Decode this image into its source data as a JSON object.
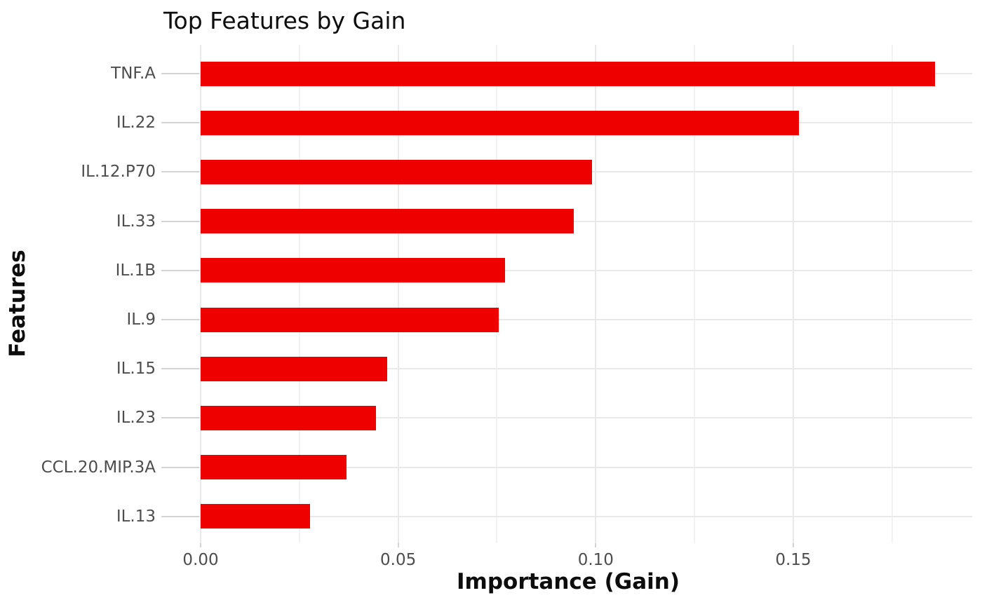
{
  "title": "Top Features by Gain",
  "x_axis": {
    "label": "Importance (Gain)",
    "tick_labels": [
      "0.00",
      "0.05",
      "0.10",
      "0.15"
    ]
  },
  "y_axis": {
    "label": "Features"
  },
  "colors": {
    "bar": "#ee0000",
    "grid_major": "#e9e9e9",
    "grid_minor": "#f2f2f2",
    "tick_mark": "#d4d4d4",
    "axis_text": "#4d4d4d",
    "title_text": "#0d0d0d",
    "background": "#ffffff"
  },
  "chart_data": {
    "type": "bar",
    "orientation": "horizontal",
    "title": "Top Features by Gain",
    "xlabel": "Importance (Gain)",
    "ylabel": "Features",
    "categories": [
      "TNF.A",
      "IL.22",
      "IL.12.P70",
      "IL.33",
      "IL.1B",
      "IL.9",
      "IL.15",
      "IL.23",
      "CCL.20.MIP.3A",
      "IL.13"
    ],
    "values": [
      0.1858,
      0.1514,
      0.0991,
      0.0944,
      0.077,
      0.0754,
      0.0472,
      0.0444,
      0.037,
      0.0277
    ],
    "xlim": [
      0,
      0.1953
    ],
    "x_major_ticks": [
      0,
      0.05,
      0.1,
      0.15
    ],
    "x_minor_ticks": [
      0.025,
      0.075,
      0.125,
      0.175
    ],
    "grid": true,
    "legend": "none",
    "bar_color": "#ee0000"
  }
}
